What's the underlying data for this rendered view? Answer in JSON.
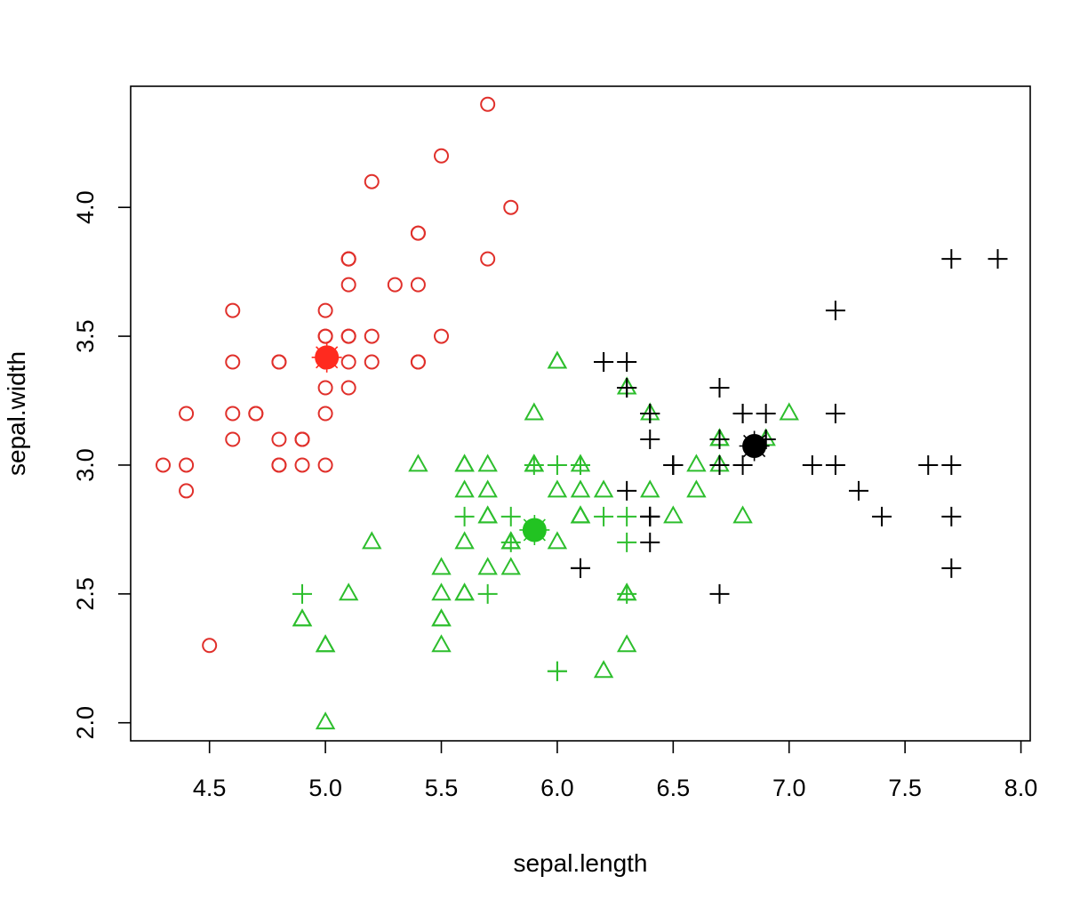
{
  "chart_data": {
    "type": "scatter",
    "title": "",
    "xlabel": "sepal.length",
    "ylabel": "sepal.width",
    "xlim": [
      4.16,
      8.04
    ],
    "ylim": [
      1.93,
      4.47
    ],
    "x_ticks": [
      4.5,
      5.0,
      5.5,
      6.0,
      6.5,
      7.0,
      7.5,
      8.0
    ],
    "x_tick_labels": [
      "4.5",
      "5.0",
      "5.5",
      "6.0",
      "6.5",
      "7.0",
      "7.5",
      "8.0"
    ],
    "y_ticks": [
      2.0,
      2.5,
      3.0,
      3.5,
      4.0
    ],
    "y_tick_labels": [
      "2.0",
      "2.5",
      "3.0",
      "3.5",
      "4.0"
    ],
    "grid": false,
    "legend": "none",
    "series": [
      {
        "color": "#E0302B",
        "marker": "circle-open",
        "x": [
          5.1,
          4.9,
          4.7,
          4.6,
          5.0,
          5.4,
          4.6,
          5.0,
          4.4,
          4.9,
          5.4,
          4.8,
          4.8,
          4.3,
          5.8,
          5.7,
          5.4,
          5.1,
          5.7,
          5.1,
          5.4,
          5.1,
          4.6,
          5.1,
          4.8,
          5.0,
          5.0,
          5.2,
          5.2,
          4.7,
          4.8,
          5.4,
          5.2,
          5.5,
          4.9,
          5.0,
          5.5,
          4.9,
          4.4,
          5.1,
          5.0,
          4.5,
          4.4,
          5.0,
          5.1,
          4.8,
          5.1,
          4.6,
          5.3,
          5.0
        ],
        "y": [
          3.5,
          3.0,
          3.2,
          3.1,
          3.6,
          3.9,
          3.4,
          3.4,
          2.9,
          3.1,
          3.7,
          3.4,
          3.0,
          3.0,
          4.0,
          4.4,
          3.9,
          3.5,
          3.8,
          3.8,
          3.4,
          3.7,
          3.6,
          3.3,
          3.4,
          3.0,
          3.4,
          3.5,
          3.4,
          3.2,
          3.1,
          3.4,
          4.1,
          4.2,
          3.1,
          3.2,
          3.5,
          3.1,
          3.0,
          3.4,
          3.5,
          2.3,
          3.2,
          3.5,
          3.8,
          3.0,
          3.8,
          3.2,
          3.7,
          3.3
        ]
      },
      {
        "color": "#2DBE2D",
        "marker": "triangle-open",
        "x": [
          6.0,
          5.2,
          5.0,
          5.9,
          6.1,
          5.6,
          6.7,
          5.6,
          5.8,
          6.2,
          5.6,
          5.9,
          6.1,
          6.3,
          6.1,
          6.4,
          6.6,
          6.8,
          6.7,
          6.0,
          5.7,
          5.5,
          5.5,
          5.8,
          6.0,
          5.4,
          6.0,
          6.7,
          6.3,
          5.6,
          5.5,
          5.5,
          6.1,
          5.8,
          5.0,
          5.6,
          5.7,
          5.7,
          6.2,
          5.7,
          6.3,
          6.6,
          6.5,
          7.0,
          6.9,
          5.5,
          5.7,
          6.3,
          4.9,
          5.1,
          5.0,
          4.9,
          5.6,
          5.8,
          5.9,
          5.9,
          6.1,
          6.3,
          6.4,
          6.7
        ],
        "y": [
          3.4,
          2.7,
          2.0,
          3.2,
          2.8,
          2.5,
          3.1,
          3.0,
          2.7,
          2.2,
          2.5,
          3.0,
          2.8,
          2.5,
          2.8,
          2.9,
          3.0,
          2.8,
          3.0,
          2.9,
          2.6,
          2.4,
          2.4,
          2.7,
          2.7,
          3.0,
          3.4,
          3.1,
          2.3,
          3.0,
          2.5,
          2.6,
          3.0,
          2.6,
          2.3,
          2.7,
          3.0,
          2.9,
          2.9,
          2.8,
          3.3,
          2.9,
          2.8,
          3.2,
          3.1,
          2.3,
          2.8,
          3.3,
          2.4,
          2.5,
          2.3,
          2.4,
          2.9,
          2.7,
          3.0,
          3.0,
          2.9,
          2.5,
          3.2,
          3.1
        ]
      },
      {
        "color": "#2DBE2D",
        "marker": "plus",
        "x": [
          4.9,
          5.6,
          5.7,
          5.8,
          5.8,
          5.9,
          6.0,
          6.0,
          6.1,
          6.2,
          6.3,
          6.3,
          6.3,
          6.0
        ],
        "y": [
          2.5,
          2.8,
          2.5,
          2.8,
          2.7,
          3.0,
          2.2,
          3.0,
          3.0,
          2.8,
          2.7,
          2.8,
          2.5,
          2.2
        ]
      },
      {
        "color": "#000000",
        "marker": "plus",
        "x": [
          6.3,
          6.5,
          7.6,
          7.3,
          6.7,
          7.2,
          6.4,
          6.8,
          6.4,
          6.5,
          7.7,
          7.7,
          6.9,
          7.7,
          6.7,
          7.2,
          6.2,
          6.1,
          6.4,
          7.2,
          7.4,
          7.9,
          6.4,
          6.1,
          7.7,
          6.3,
          6.4,
          6.9,
          6.7,
          6.7,
          6.8,
          6.7,
          6.7,
          6.3,
          6.5,
          6.2,
          6.4,
          6.8,
          7.1,
          6.3,
          6.9,
          6.5,
          6.4
        ],
        "y": [
          2.9,
          3.0,
          3.0,
          2.9,
          2.5,
          3.6,
          3.2,
          3.0,
          2.7,
          3.0,
          3.8,
          2.6,
          3.2,
          2.8,
          3.3,
          3.2,
          3.4,
          2.6,
          2.8,
          3.0,
          2.8,
          3.8,
          2.8,
          2.6,
          3.0,
          3.4,
          3.1,
          3.1,
          3.1,
          3.0,
          3.2,
          3.3,
          3.0,
          3.3,
          3.0,
          3.4,
          2.8,
          3.2,
          3.0,
          3.3,
          3.1,
          3.0,
          3.2
        ]
      }
    ],
    "centroids": [
      {
        "x": 5.006,
        "y": 3.418,
        "color": "#FF2A1F"
      },
      {
        "x": 5.902,
        "y": 2.748,
        "color": "#22C322"
      },
      {
        "x": 6.85,
        "y": 3.074,
        "color": "#000000"
      }
    ]
  }
}
